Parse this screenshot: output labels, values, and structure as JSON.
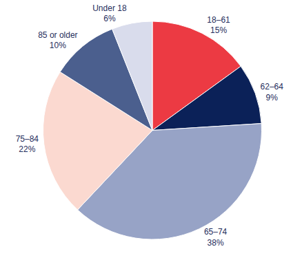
{
  "chart_data": {
    "type": "pie",
    "categories": [
      "18–61",
      "62–64",
      "65–74",
      "75–84",
      "85 or older",
      "Under 18"
    ],
    "values": [
      15,
      9,
      38,
      22,
      10,
      6
    ],
    "value_labels": [
      "15%",
      "9%",
      "38%",
      "22%",
      "10%",
      "6%"
    ],
    "colors": [
      "#ec3a43",
      "#0b2158",
      "#97a3c6",
      "#fbd9d0",
      "#4b5f8e",
      "#d9dcec"
    ],
    "data_labels": true
  }
}
